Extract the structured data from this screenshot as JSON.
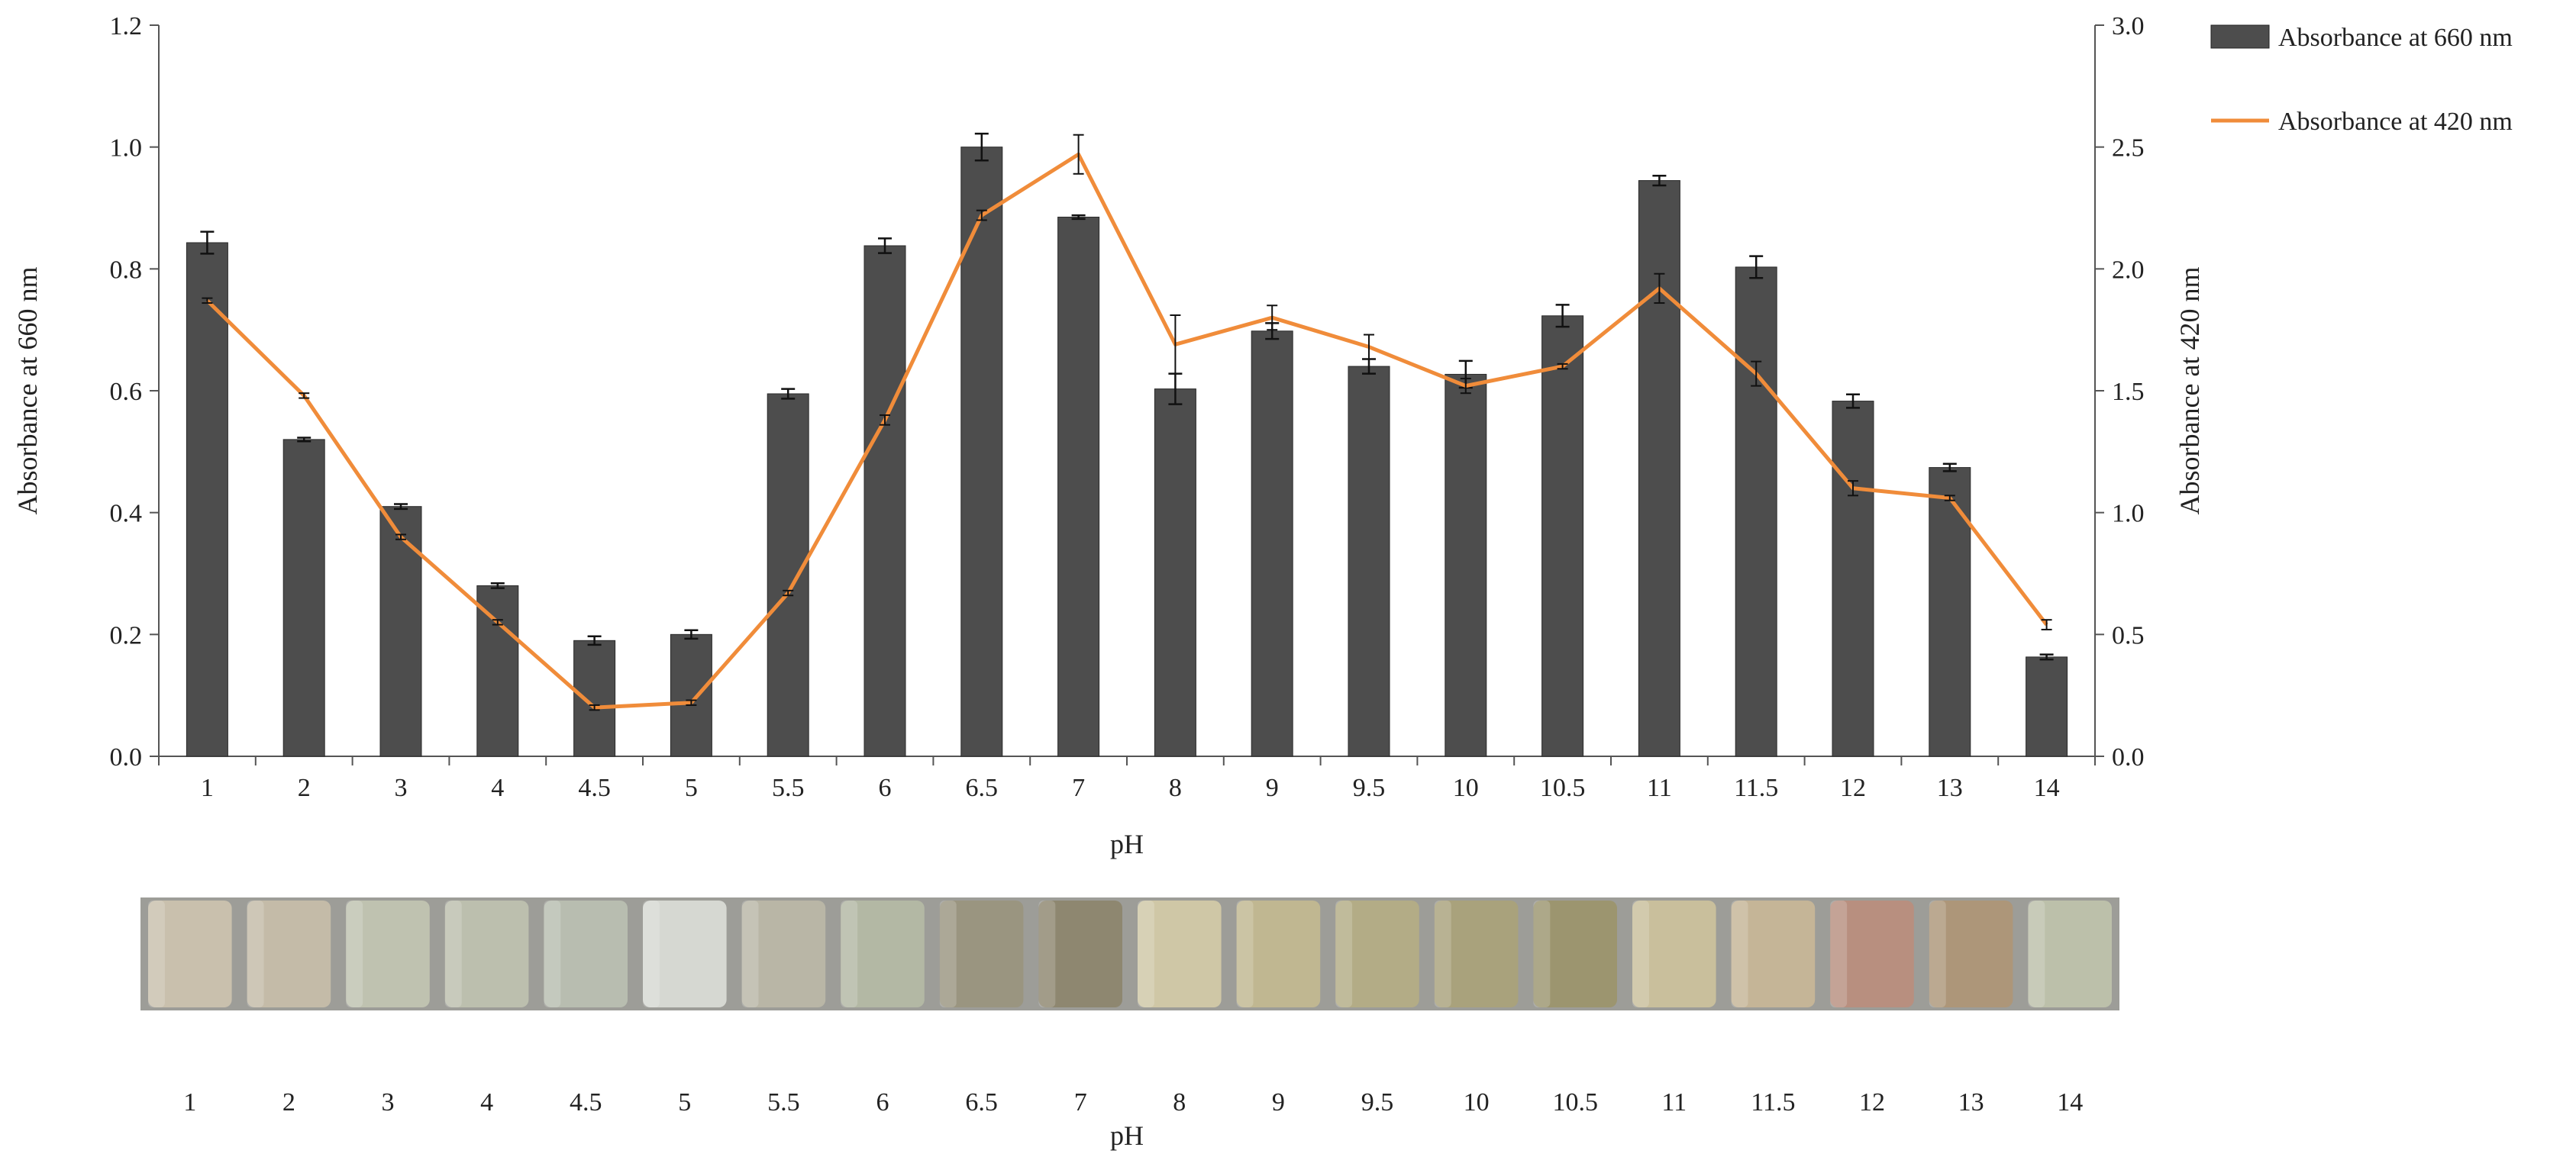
{
  "chart_data": {
    "type": "bar",
    "xlabel": "pH",
    "ylabel_left": "Absorbance at 660 nm",
    "ylabel_right": "Absorbance at  420 nm",
    "ylim_left": [
      0,
      1.2
    ],
    "ylim_right": [
      0,
      3.0
    ],
    "yticks_left": [
      "0.0",
      "0.2",
      "0.4",
      "0.6",
      "0.8",
      "1.0",
      "1.2"
    ],
    "yticks_right": [
      "0.0",
      "0.5",
      "1.0",
      "1.5",
      "2.0",
      "2.5",
      "3.0"
    ],
    "grid": false,
    "legend_position": "top-right",
    "categories": [
      "1",
      "2",
      "3",
      "4",
      "4.5",
      "5",
      "5.5",
      "6",
      "6.5",
      "7",
      "8",
      "9",
      "9.5",
      "10",
      "10.5",
      "11",
      "11.5",
      "12",
      "13",
      "14"
    ],
    "series": [
      {
        "name": "Absorbance at 660 nm",
        "type": "bar",
        "axis": "left",
        "color": "#4d4d4d",
        "values": [
          0.843,
          0.52,
          0.41,
          0.28,
          0.19,
          0.2,
          0.595,
          0.838,
          1.0,
          0.885,
          0.603,
          0.698,
          0.64,
          0.627,
          0.723,
          0.945,
          0.803,
          0.583,
          0.474,
          0.163
        ],
        "errors": [
          0.018,
          0.003,
          0.004,
          0.004,
          0.007,
          0.007,
          0.008,
          0.012,
          0.022,
          0.003,
          0.025,
          0.013,
          0.012,
          0.022,
          0.018,
          0.008,
          0.018,
          0.011,
          0.006,
          0.004
        ]
      },
      {
        "name": "Absorbance at 420 nm",
        "type": "line",
        "axis": "right",
        "color": "#f08c3a",
        "values": [
          1.87,
          1.48,
          0.9,
          0.55,
          0.2,
          0.22,
          0.67,
          1.38,
          2.22,
          2.47,
          1.69,
          1.8,
          1.68,
          1.52,
          1.6,
          1.92,
          1.57,
          1.1,
          1.06,
          0.54
        ],
        "errors": [
          0.01,
          0.01,
          0.01,
          0.01,
          0.01,
          0.01,
          0.01,
          0.02,
          0.02,
          0.08,
          0.12,
          0.05,
          0.05,
          0.03,
          0.01,
          0.06,
          0.05,
          0.03,
          0.01,
          0.02
        ]
      }
    ]
  },
  "photo_strip": {
    "xlabel": "pH",
    "labels": [
      "1",
      "2",
      "3",
      "4",
      "4.5",
      "5",
      "5.5",
      "6",
      "6.5",
      "7",
      "8",
      "9",
      "9.5",
      "10",
      "10.5",
      "11",
      "11.5",
      "12",
      "13",
      "14"
    ],
    "colors": [
      "#c9c0ad",
      "#c4bba8",
      "#bfc2b0",
      "#bcbfae",
      "#b8bdb0",
      "#d6d8d2",
      "#b9b6a6",
      "#b3b8a4",
      "#9a9580",
      "#8e8770",
      "#cfc7a6",
      "#c0b791",
      "#b3ac86",
      "#a9a27c",
      "#9c956f",
      "#c9bf9c",
      "#c5b597",
      "#b88f7f",
      "#ad9679",
      "#bcc0aa"
    ]
  }
}
